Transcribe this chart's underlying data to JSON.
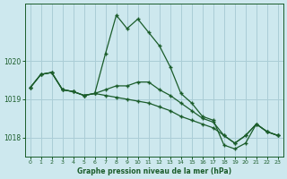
{
  "background_color": "#cde8ee",
  "grid_color": "#aacdd6",
  "line_color": "#1a5c2a",
  "xlabel": "Graphe pression niveau de la mer (hPa)",
  "xlim": [
    -0.5,
    23.5
  ],
  "ylim": [
    1017.5,
    1021.5
  ],
  "yticks": [
    1018,
    1019,
    1020
  ],
  "xticks": [
    0,
    1,
    2,
    3,
    4,
    5,
    6,
    7,
    8,
    9,
    10,
    11,
    12,
    13,
    14,
    15,
    16,
    17,
    18,
    19,
    20,
    21,
    22,
    23
  ],
  "series": [
    [
      1019.3,
      1019.65,
      1019.7,
      1019.25,
      1019.2,
      1019.1,
      1019.15,
      1020.2,
      1021.2,
      1020.85,
      1021.1,
      1020.75,
      1020.4,
      1019.85,
      1019.15,
      1018.9,
      1018.55,
      1018.45,
      1017.8,
      1017.7,
      1017.85,
      1018.35,
      1018.15,
      1018.05
    ],
    [
      1019.3,
      1019.65,
      1019.7,
      1019.25,
      1019.2,
      1019.1,
      1019.15,
      1019.25,
      1019.35,
      1019.35,
      1019.45,
      1019.45,
      1019.25,
      1019.1,
      1018.9,
      1018.7,
      1018.5,
      1018.4,
      1018.05,
      1017.85,
      1018.05,
      1018.35,
      1018.15,
      1018.05
    ],
    [
      1019.3,
      1019.65,
      1019.7,
      1019.25,
      1019.2,
      1019.1,
      1019.15,
      1019.1,
      1019.05,
      1019.0,
      1018.95,
      1018.9,
      1018.8,
      1018.7,
      1018.55,
      1018.45,
      1018.35,
      1018.25,
      1018.05,
      1017.85,
      1018.05,
      1018.35,
      1018.15,
      1018.05
    ]
  ]
}
